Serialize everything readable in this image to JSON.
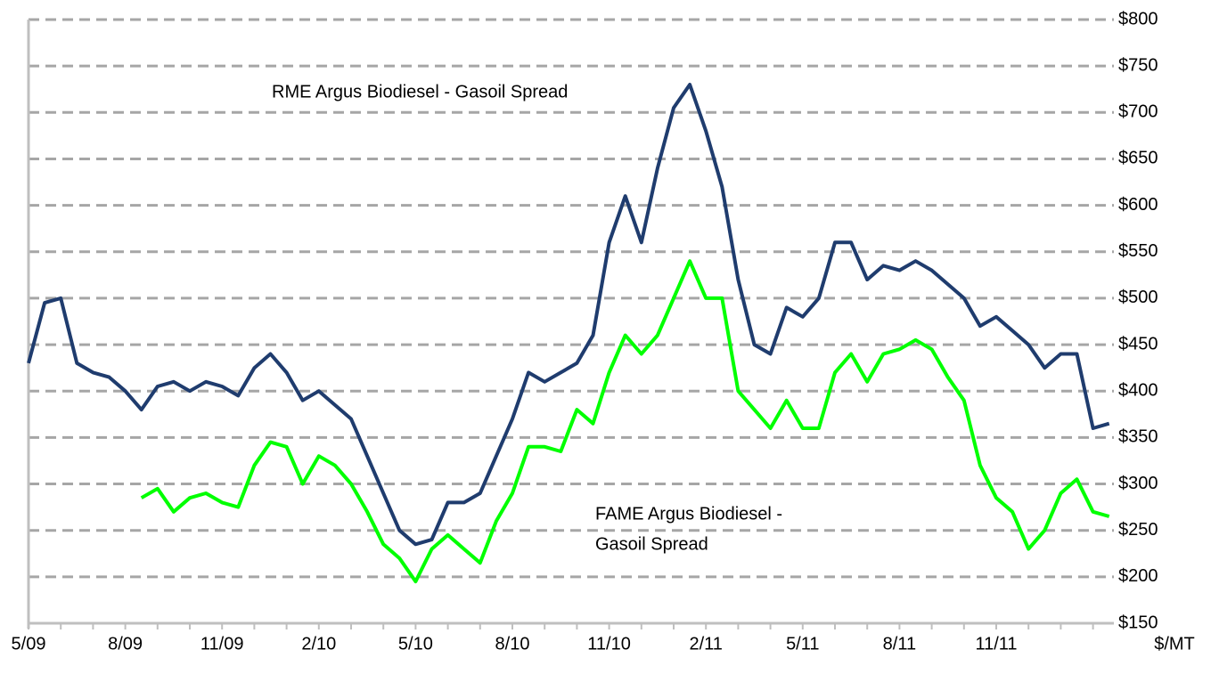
{
  "chart_data": {
    "type": "line",
    "y_unit": "$/MT",
    "annotations": [
      {
        "lines": [
          "RME Argus Biodiesel - Gasoil Spread"
        ]
      },
      {
        "lines": [
          "FAME Argus Biodiesel -",
          "Gasoil Spread"
        ]
      }
    ],
    "categories": [
      "5/09",
      null,
      null,
      null,
      null,
      null,
      "8/09",
      null,
      null,
      null,
      null,
      null,
      "11/09",
      null,
      null,
      null,
      null,
      null,
      "2/10",
      null,
      null,
      null,
      null,
      null,
      "5/10",
      null,
      null,
      null,
      null,
      null,
      "8/10",
      null,
      null,
      null,
      null,
      null,
      "11/10",
      null,
      null,
      null,
      null,
      null,
      "2/11",
      null,
      null,
      null,
      null,
      null,
      "5/11",
      null,
      null,
      null,
      null,
      null,
      "8/11",
      null,
      null,
      null,
      null,
      null,
      "11/11",
      null,
      null,
      null,
      null,
      null,
      null,
      null
    ],
    "series": [
      {
        "name": "RME Argus Biodiesel - Gasoil Spread",
        "color": "#1f3c6e",
        "values": [
          430,
          495,
          500,
          430,
          420,
          415,
          400,
          380,
          405,
          410,
          400,
          410,
          405,
          395,
          425,
          440,
          420,
          390,
          400,
          385,
          370,
          330,
          290,
          250,
          235,
          240,
          280,
          280,
          290,
          330,
          370,
          420,
          410,
          420,
          430,
          460,
          560,
          610,
          560,
          640,
          705,
          730,
          680,
          620,
          520,
          450,
          440,
          490,
          480,
          500,
          560,
          560,
          520,
          535,
          530,
          540,
          530,
          515,
          500,
          470,
          480,
          465,
          450,
          425,
          440,
          440,
          360,
          365
        ]
      },
      {
        "name": "FAME Argus Biodiesel - Gasoil Spread",
        "color": "#00ff00",
        "values": [
          null,
          null,
          null,
          null,
          null,
          null,
          null,
          285,
          295,
          270,
          285,
          290,
          280,
          275,
          320,
          345,
          340,
          300,
          330,
          320,
          300,
          270,
          235,
          220,
          195,
          230,
          245,
          230,
          215,
          260,
          290,
          340,
          340,
          335,
          380,
          365,
          420,
          460,
          440,
          460,
          500,
          540,
          500,
          500,
          400,
          380,
          360,
          390,
          360,
          360,
          420,
          440,
          410,
          440,
          445,
          455,
          445,
          415,
          390,
          320,
          285,
          270,
          230,
          250,
          290,
          305,
          270,
          265
        ]
      }
    ],
    "ylim": [
      150,
      800
    ],
    "yticks": [
      {
        "value": 150,
        "label": "$150"
      },
      {
        "value": 200,
        "label": "$200"
      },
      {
        "value": 250,
        "label": "$250"
      },
      {
        "value": 300,
        "label": "$300"
      },
      {
        "value": 350,
        "label": "$350"
      },
      {
        "value": 400,
        "label": "$400"
      },
      {
        "value": 450,
        "label": "$450"
      },
      {
        "value": 500,
        "label": "$500"
      },
      {
        "value": 550,
        "label": "$550"
      },
      {
        "value": 600,
        "label": "$600"
      },
      {
        "value": 650,
        "label": "$650"
      },
      {
        "value": 700,
        "label": "$700"
      },
      {
        "value": 750,
        "label": "$750"
      },
      {
        "value": 800,
        "label": "$800"
      }
    ],
    "grid": true
  }
}
